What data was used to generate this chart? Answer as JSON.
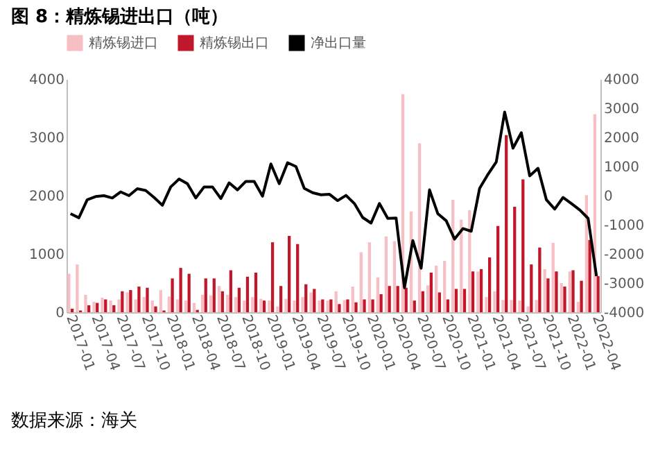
{
  "chart_data": {
    "type": "bar",
    "title": "图 8：精炼锡进出口（吨）",
    "categories": [
      "2017-01",
      null,
      null,
      "2017-04",
      null,
      null,
      "2017-07",
      null,
      null,
      "2017-10",
      null,
      null,
      "2018-01",
      null,
      null,
      "2018-04",
      null,
      null,
      "2018-07",
      null,
      null,
      "2018-10",
      null,
      null,
      "2019-01",
      null,
      null,
      "2019-04",
      null,
      null,
      "2019-07",
      null,
      null,
      "2019-10",
      null,
      null,
      "2020-01",
      null,
      null,
      "2020-04",
      null,
      null,
      "2020-07",
      null,
      null,
      "2020-10",
      null,
      null,
      "2021-01",
      null,
      null,
      "2021-04",
      null,
      null,
      "2021-07",
      null,
      null,
      "2021-10",
      null,
      null,
      "2022-01",
      null,
      null,
      "2022-04"
    ],
    "series": [
      {
        "name": "精炼锡进口",
        "color": "#f7bfc4",
        "values": [
          660,
          820,
          300,
          180,
          250,
          200,
          220,
          340,
          220,
          260,
          200,
          380,
          270,
          220,
          200,
          160,
          300,
          290,
          450,
          300,
          260,
          200,
          260,
          230,
          200,
          100,
          230,
          200,
          260,
          340,
          200,
          200,
          360,
          210,
          440,
          1030,
          1200,
          600,
          1300,
          1220,
          3740,
          1730,
          2900,
          460,
          800,
          880,
          1930,
          1590,
          1750,
          700,
          260,
          360,
          210,
          210,
          200,
          100,
          210,
          740,
          1190,
          500,
          700,
          180,
          2010,
          3400
        ]
      },
      {
        "name": "精炼锡出口",
        "color": "#c0172a",
        "values": [
          60,
          30,
          120,
          160,
          220,
          120,
          360,
          380,
          440,
          420,
          100,
          30,
          580,
          760,
          660,
          40,
          580,
          580,
          360,
          720,
          420,
          610,
          680,
          200,
          1200,
          450,
          1310,
          1170,
          480,
          400,
          220,
          220,
          140,
          220,
          170,
          220,
          220,
          310,
          450,
          450,
          420,
          200,
          360,
          680,
          340,
          220,
          400,
          400,
          700,
          740,
          940,
          1480,
          3040,
          1810,
          2280,
          820,
          1110,
          580,
          700,
          440,
          720,
          540,
          1240,
          620
        ]
      },
      {
        "name": "净出口量",
        "type": "line",
        "axis": "y2",
        "color": "#000000",
        "values": [
          -620,
          -760,
          -140,
          -30,
          0,
          -80,
          130,
          0,
          240,
          180,
          -60,
          -330,
          300,
          570,
          410,
          -80,
          300,
          300,
          -100,
          440,
          200,
          490,
          490,
          -20,
          1090,
          410,
          1130,
          1000,
          250,
          100,
          30,
          50,
          -170,
          10,
          -270,
          -750,
          -940,
          -270,
          -780,
          -770,
          -3160,
          -1540,
          -2490,
          200,
          -620,
          -860,
          -1490,
          -1130,
          -1220,
          250,
          730,
          1160,
          2870,
          1630,
          2160,
          680,
          940,
          -140,
          -460,
          -60,
          -270,
          -490,
          -780,
          -2760
        ]
      }
    ],
    "ylim": [
      0,
      4000
    ],
    "yticks": [
      0,
      1000,
      2000,
      3000,
      4000
    ],
    "y2lim": [
      -4000,
      4000
    ],
    "y2ticks": [
      -4000,
      -3000,
      -2000,
      -1000,
      0,
      1000,
      2000,
      3000,
      4000
    ],
    "legend": "top",
    "grid": false,
    "annotations": [
      "数据来源：海关"
    ]
  }
}
